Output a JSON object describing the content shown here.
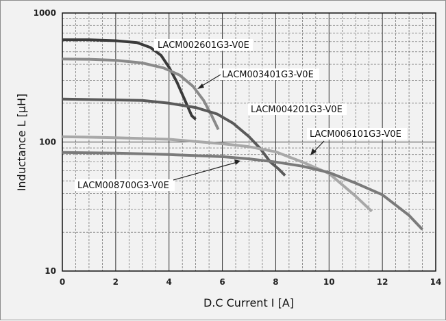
{
  "chart_data": {
    "type": "line",
    "xlabel": "D.C Current I [A]",
    "ylabel": "Inductance L [μH]",
    "xlim": [
      0,
      14
    ],
    "ylim": [
      10,
      1000
    ],
    "yscale": "log",
    "grid": true,
    "x_ticks": [
      "0",
      "2",
      "4",
      "6",
      "8",
      "10",
      "12",
      "14"
    ],
    "y_ticks": [
      "10",
      "100",
      "1000"
    ],
    "series": [
      {
        "name": "LACM002601G3-V0E",
        "color": "#3a3a3a",
        "x": [
          0,
          1,
          2,
          2.8,
          3.3,
          3.7,
          4.0,
          4.3,
          4.6,
          4.85,
          5.0
        ],
        "y": [
          620,
          620,
          610,
          590,
          540,
          470,
          380,
          290,
          210,
          160,
          150
        ]
      },
      {
        "name": "LACM003401G3-V0E",
        "color": "#8a8a8a",
        "x": [
          0,
          1,
          2,
          3,
          3.8,
          4.4,
          4.9,
          5.3,
          5.6,
          5.85
        ],
        "y": [
          440,
          438,
          430,
          410,
          375,
          330,
          270,
          210,
          160,
          125
        ]
      },
      {
        "name": "LACM004201G3-V0E",
        "color": "#5a5a5a",
        "x": [
          0,
          2,
          3,
          4,
          5,
          5.8,
          6.4,
          7.0,
          7.4,
          7.8,
          8.1,
          8.35
        ],
        "y": [
          215,
          212,
          210,
          200,
          185,
          165,
          140,
          110,
          90,
          70,
          62,
          55
        ]
      },
      {
        "name": "LACM006101G3-V0E",
        "color": "#a8a8a8",
        "x": [
          0,
          2,
          4,
          6,
          7,
          8,
          9,
          10,
          11,
          11.6
        ],
        "y": [
          110,
          108,
          105,
          97,
          92,
          84,
          70,
          57,
          38,
          29
        ]
      },
      {
        "name": "LACM008700G3-V0E",
        "color": "#7a7a7a",
        "x": [
          0,
          2,
          4,
          6,
          7,
          8,
          9,
          10,
          11,
          12,
          13,
          13.5
        ],
        "y": [
          83,
          82,
          80,
          77,
          74,
          70,
          65,
          58,
          48,
          39,
          27,
          21
        ]
      }
    ]
  }
}
